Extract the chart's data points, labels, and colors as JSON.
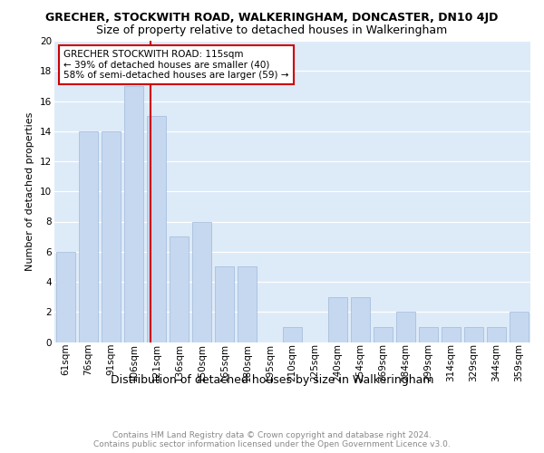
{
  "title": "GRECHER, STOCKWITH ROAD, WALKERINGHAM, DONCASTER, DN10 4JD",
  "subtitle": "Size of property relative to detached houses in Walkeringham",
  "xlabel": "Distribution of detached houses by size in Walkeringham",
  "ylabel": "Number of detached properties",
  "categories": [
    "61sqm",
    "76sqm",
    "91sqm",
    "106sqm",
    "121sqm",
    "136sqm",
    "150sqm",
    "165sqm",
    "180sqm",
    "195sqm",
    "210sqm",
    "225sqm",
    "240sqm",
    "254sqm",
    "269sqm",
    "284sqm",
    "299sqm",
    "314sqm",
    "329sqm",
    "344sqm",
    "359sqm"
  ],
  "values": [
    6,
    14,
    14,
    17,
    15,
    7,
    8,
    5,
    5,
    0,
    1,
    0,
    3,
    3,
    1,
    2,
    1,
    1,
    1,
    1,
    2
  ],
  "bar_color": "#c5d8f0",
  "bar_edge_color": "#a0b8d8",
  "grid_color": "#b0c4de",
  "bg_color": "#ddeaf8",
  "vline_x_index": 3.75,
  "vline_color": "#cc0000",
  "annotation_text": "GRECHER STOCKWITH ROAD: 115sqm\n← 39% of detached houses are smaller (40)\n58% of semi-detached houses are larger (59) →",
  "annotation_box_color": "#ffffff",
  "annotation_border_color": "#cc0000",
  "ylim": [
    0,
    20
  ],
  "yticks": [
    0,
    2,
    4,
    6,
    8,
    10,
    12,
    14,
    16,
    18,
    20
  ],
  "footer": "Contains HM Land Registry data © Crown copyright and database right 2024.\nContains public sector information licensed under the Open Government Licence v3.0.",
  "title_fontsize": 9,
  "subtitle_fontsize": 9,
  "xlabel_fontsize": 9,
  "ylabel_fontsize": 8,
  "tick_fontsize": 7.5,
  "footer_fontsize": 6.5,
  "annot_fontsize": 7.5
}
